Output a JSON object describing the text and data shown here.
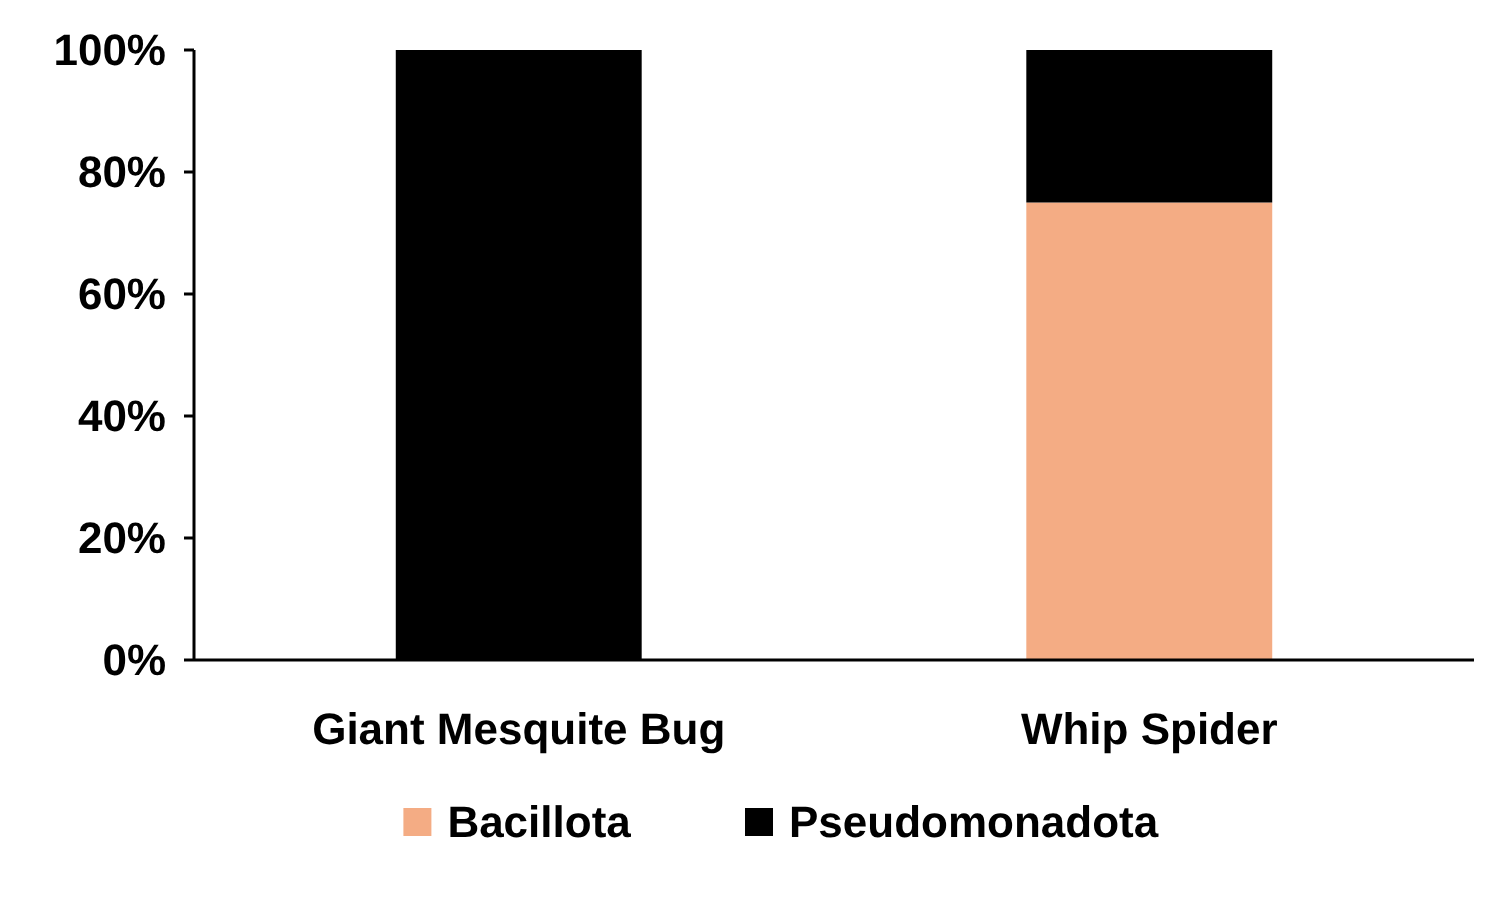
{
  "chart_data": {
    "type": "bar",
    "stacked": true,
    "categories": [
      "Giant Mesquite Bug",
      "Whip Spider"
    ],
    "series": [
      {
        "name": "Bacillota",
        "color": "#f4ac84",
        "values": [
          0,
          75
        ]
      },
      {
        "name": "Pseudomonadota",
        "color": "#000000",
        "values": [
          100,
          25
        ]
      }
    ],
    "ylim": [
      0,
      100
    ],
    "yticks": [
      {
        "value": 0,
        "label": "0%"
      },
      {
        "value": 20,
        "label": "20%"
      },
      {
        "value": 40,
        "label": "40%"
      },
      {
        "value": 60,
        "label": "60%"
      },
      {
        "value": 80,
        "label": "80%"
      },
      {
        "value": 100,
        "label": "100%"
      }
    ],
    "grid": false,
    "legend": "bottom"
  }
}
